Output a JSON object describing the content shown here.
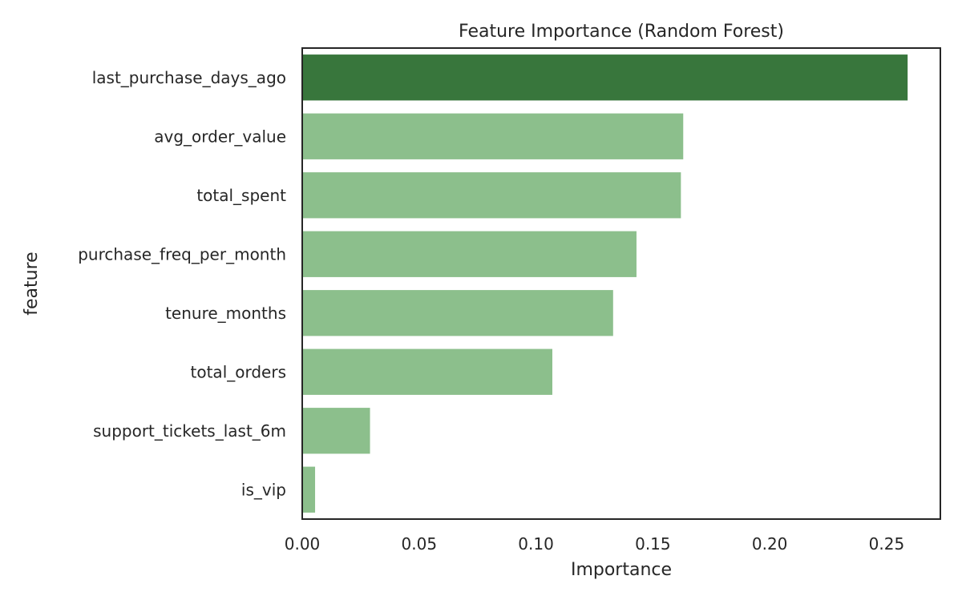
{
  "chart_data": {
    "type": "bar",
    "orientation": "horizontal",
    "title": "Feature Importance (Random Forest)",
    "xlabel": "Importance",
    "ylabel": "feature",
    "categories": [
      "last_purchase_days_ago",
      "avg_order_value",
      "total_spent",
      "purchase_freq_per_month",
      "tenure_months",
      "total_orders",
      "support_tickets_last_6m",
      "is_vip"
    ],
    "values": [
      0.259,
      0.163,
      0.162,
      0.143,
      0.133,
      0.107,
      0.029,
      0.0055
    ],
    "xlim": [
      0,
      0.273
    ],
    "xticks": [
      "0.00",
      "0.05",
      "0.10",
      "0.15",
      "0.20",
      "0.25"
    ],
    "grid": false,
    "highlight_index": 0,
    "colors": {
      "highlight": "#38763c",
      "bar": "#8cbf8c",
      "axis": "#262626"
    }
  }
}
